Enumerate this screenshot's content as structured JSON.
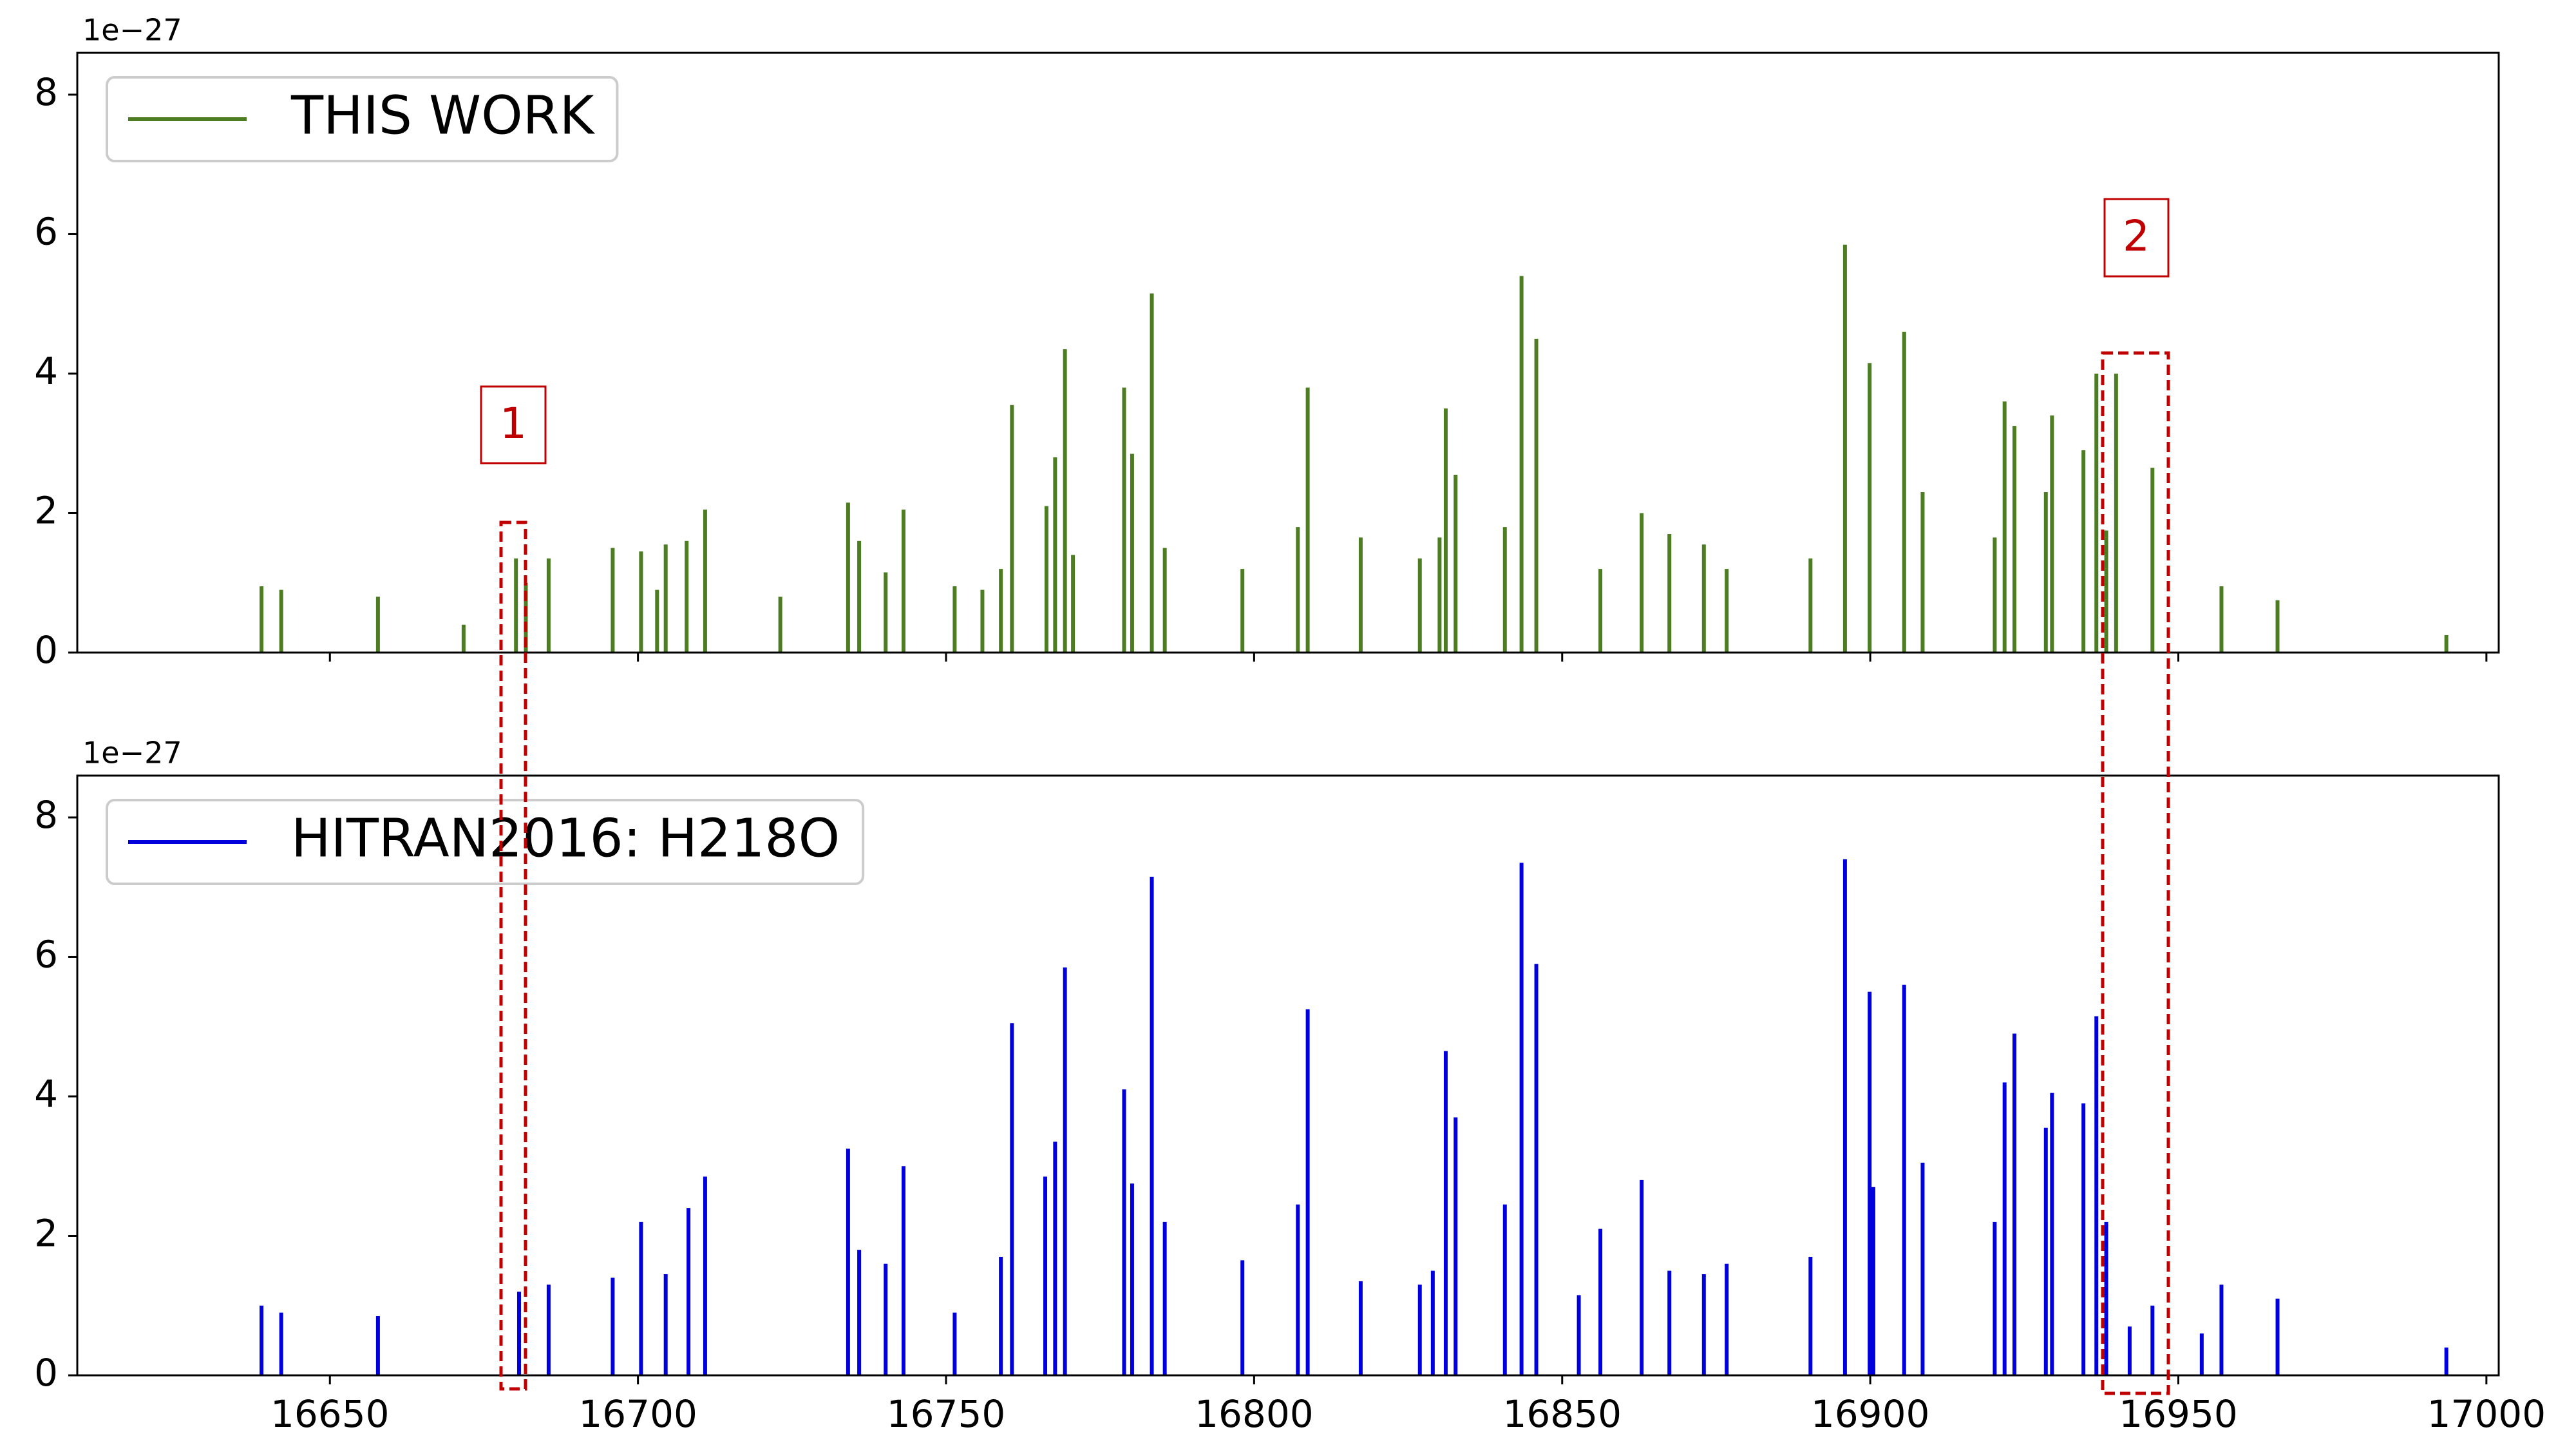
{
  "chart_data": [
    {
      "type": "stem",
      "offset_label": "1e−27",
      "xlim": [
        16609,
        17002
      ],
      "ylim": [
        0,
        8.6
      ],
      "xticks": [
        16650,
        16700,
        16750,
        16800,
        16850,
        16900,
        16950,
        17000
      ],
      "show_xtick_labels": false,
      "yticks": [
        0,
        2,
        4,
        6,
        8
      ],
      "legend": "upper left",
      "x": [
        16638.9,
        16642.1,
        16657.8,
        16671.7,
        16680.2,
        16681.8,
        16685.5,
        16695.9,
        16700.5,
        16703.1,
        16704.5,
        16707.9,
        16710.9,
        16723.1,
        16734.1,
        16735.9,
        16740.2,
        16743.1,
        16751.4,
        16755.9,
        16758.9,
        16760.7,
        16766.3,
        16767.7,
        16769.3,
        16770.6,
        16778.9,
        16780.2,
        16783.4,
        16785.5,
        16798.1,
        16807.1,
        16808.7,
        16817.3,
        16826.9,
        16830.1,
        16831.1,
        16832.7,
        16840.7,
        16843.4,
        16845.8,
        16856.2,
        16862.9,
        16867.4,
        16873.0,
        16876.7,
        16890.3,
        16895.9,
        16899.9,
        16905.5,
        16908.5,
        16920.2,
        16921.8,
        16923.4,
        16928.5,
        16929.5,
        16934.6,
        16936.7,
        16938.3,
        16939.9,
        16945.8,
        16957.0,
        16966.1,
        16993.5
      ],
      "series": [
        {
          "name": "THIS WORK",
          "color": "#4c7d22",
          "values": [
            0.95,
            0.9,
            0.8,
            0.4,
            1.35,
            1.0,
            1.35,
            1.5,
            1.45,
            0.9,
            1.55,
            1.6,
            2.05,
            0.8,
            2.15,
            1.6,
            1.15,
            2.05,
            0.95,
            0.9,
            1.2,
            3.55,
            2.1,
            2.8,
            4.35,
            1.4,
            3.8,
            2.85,
            5.15,
            1.5,
            1.2,
            1.8,
            3.8,
            1.65,
            1.35,
            1.65,
            3.5,
            2.55,
            1.8,
            5.4,
            4.5,
            1.2,
            2.0,
            1.7,
            1.55,
            1.2,
            1.35,
            5.85,
            4.15,
            4.6,
            2.3,
            1.65,
            3.6,
            3.25,
            2.3,
            3.4,
            2.9,
            4.0,
            1.75,
            4.0,
            2.65,
            0.95,
            0.75,
            0.25
          ]
        }
      ]
    },
    {
      "type": "stem",
      "offset_label": "1e−27",
      "xlim": [
        16609,
        17002
      ],
      "ylim": [
        0,
        8.6
      ],
      "xticks": [
        16650,
        16700,
        16750,
        16800,
        16850,
        16900,
        16950,
        17000
      ],
      "show_xtick_labels": true,
      "yticks": [
        0,
        2,
        4,
        6,
        8
      ],
      "legend": "upper left",
      "x": [
        16638.9,
        16642.1,
        16657.8,
        16680.7,
        16685.5,
        16695.9,
        16700.5,
        16704.5,
        16708.2,
        16710.9,
        16734.1,
        16735.9,
        16740.2,
        16743.1,
        16751.4,
        16758.9,
        16760.7,
        16766.1,
        16767.7,
        16769.3,
        16778.9,
        16780.2,
        16783.4,
        16785.5,
        16798.1,
        16807.1,
        16808.7,
        16817.3,
        16826.9,
        16829.0,
        16831.1,
        16832.7,
        16840.7,
        16843.4,
        16845.8,
        16852.7,
        16856.2,
        16862.9,
        16867.4,
        16873.0,
        16876.7,
        16890.3,
        16895.9,
        16899.9,
        16900.5,
        16905.5,
        16908.5,
        16920.2,
        16921.8,
        16923.4,
        16928.5,
        16929.5,
        16934.6,
        16936.7,
        16938.3,
        16942.1,
        16945.8,
        16953.8,
        16957.0,
        16966.1,
        16993.5
      ],
      "series": [
        {
          "name": "HITRAN2016: H218O",
          "color": "#0000dd",
          "values": [
            1.0,
            0.9,
            0.85,
            1.2,
            1.3,
            1.4,
            2.2,
            1.45,
            2.4,
            2.85,
            3.25,
            1.8,
            1.6,
            3.0,
            0.9,
            1.7,
            5.05,
            2.85,
            3.35,
            5.85,
            4.1,
            2.75,
            7.15,
            2.2,
            1.65,
            2.45,
            5.25,
            1.35,
            1.3,
            1.5,
            4.65,
            3.7,
            2.45,
            7.35,
            5.9,
            1.15,
            2.1,
            2.8,
            1.5,
            1.45,
            1.6,
            1.7,
            7.4,
            5.5,
            2.7,
            5.6,
            3.05,
            2.2,
            4.2,
            4.9,
            3.55,
            4.05,
            3.9,
            5.15,
            2.2,
            0.7,
            1.0,
            0.6,
            1.3,
            1.1,
            0.4
          ]
        }
      ]
    }
  ],
  "annotations": [
    "1",
    "2"
  ]
}
